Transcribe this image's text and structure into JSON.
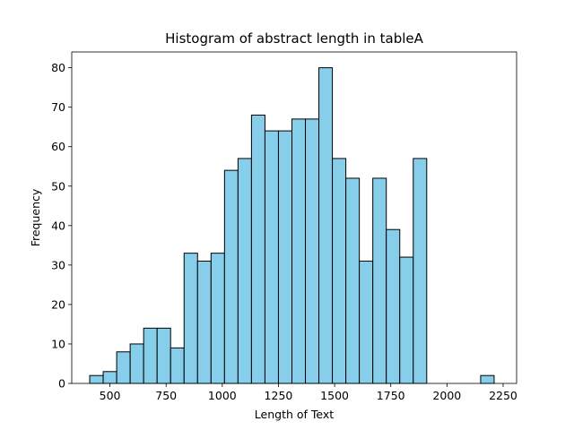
{
  "chart_data": {
    "type": "bar",
    "title": "Histogram of abstract length in tableA",
    "xlabel": "Length of Text",
    "ylabel": "Frequency",
    "bar_color": "#87ceeb",
    "edge_color": "#000000",
    "x_ticks": [
      500,
      750,
      1000,
      1250,
      1500,
      1750,
      2000,
      2250
    ],
    "y_ticks": [
      0,
      10,
      20,
      30,
      40,
      50,
      60,
      70,
      80
    ],
    "xlim": [
      330,
      2310
    ],
    "ylim": [
      0,
      84
    ],
    "bins": [
      {
        "x0": 410,
        "x1": 470,
        "value": 2
      },
      {
        "x0": 470,
        "x1": 530,
        "value": 3
      },
      {
        "x0": 530,
        "x1": 590,
        "value": 8
      },
      {
        "x0": 590,
        "x1": 650,
        "value": 10
      },
      {
        "x0": 650,
        "x1": 710,
        "value": 14
      },
      {
        "x0": 710,
        "x1": 770,
        "value": 14
      },
      {
        "x0": 770,
        "x1": 830,
        "value": 9
      },
      {
        "x0": 830,
        "x1": 890,
        "value": 33
      },
      {
        "x0": 890,
        "x1": 950,
        "value": 31
      },
      {
        "x0": 950,
        "x1": 1010,
        "value": 33
      },
      {
        "x0": 1010,
        "x1": 1070,
        "value": 54
      },
      {
        "x0": 1070,
        "x1": 1130,
        "value": 57
      },
      {
        "x0": 1130,
        "x1": 1190,
        "value": 68
      },
      {
        "x0": 1190,
        "x1": 1250,
        "value": 64
      },
      {
        "x0": 1250,
        "x1": 1310,
        "value": 64
      },
      {
        "x0": 1310,
        "x1": 1370,
        "value": 67
      },
      {
        "x0": 1370,
        "x1": 1430,
        "value": 67
      },
      {
        "x0": 1430,
        "x1": 1490,
        "value": 80
      },
      {
        "x0": 1490,
        "x1": 1550,
        "value": 57
      },
      {
        "x0": 1550,
        "x1": 1610,
        "value": 52
      },
      {
        "x0": 1610,
        "x1": 1670,
        "value": 31
      },
      {
        "x0": 1670,
        "x1": 1730,
        "value": 52
      },
      {
        "x0": 1730,
        "x1": 1790,
        "value": 39
      },
      {
        "x0": 1790,
        "x1": 1850,
        "value": 32
      },
      {
        "x0": 1850,
        "x1": 1910,
        "value": 57
      },
      {
        "x0": 1910,
        "x1": 1970,
        "value": 0
      },
      {
        "x0": 1970,
        "x1": 2030,
        "value": 0
      },
      {
        "x0": 2030,
        "x1": 2090,
        "value": 0
      },
      {
        "x0": 2090,
        "x1": 2150,
        "value": 0
      },
      {
        "x0": 2150,
        "x1": 2210,
        "value": 2
      }
    ]
  }
}
